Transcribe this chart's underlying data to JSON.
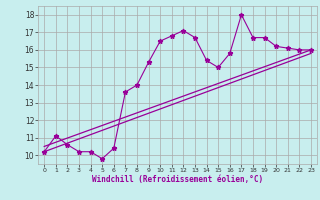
{
  "title": "",
  "xlabel": "Windchill (Refroidissement éolien,°C)",
  "bg_color": "#c8eeee",
  "grid_color": "#aaaaaa",
  "line_color": "#990099",
  "xlim": [
    -0.5,
    23.5
  ],
  "ylim": [
    9.5,
    18.5
  ],
  "xticks": [
    0,
    1,
    2,
    3,
    4,
    5,
    6,
    7,
    8,
    9,
    10,
    11,
    12,
    13,
    14,
    15,
    16,
    17,
    18,
    19,
    20,
    21,
    22,
    23
  ],
  "yticks": [
    10,
    11,
    12,
    13,
    14,
    15,
    16,
    17,
    18
  ],
  "main_x": [
    0,
    1,
    2,
    3,
    4,
    5,
    6,
    7,
    8,
    9,
    10,
    11,
    12,
    13,
    14,
    15,
    16,
    17,
    18,
    19,
    20,
    21,
    22,
    23
  ],
  "main_y": [
    10.2,
    11.1,
    10.6,
    10.2,
    10.2,
    9.8,
    10.4,
    13.6,
    14.0,
    15.3,
    16.5,
    16.8,
    17.1,
    16.7,
    15.4,
    15.0,
    15.8,
    18.0,
    16.7,
    16.7,
    16.2,
    16.1,
    16.0,
    16.0
  ],
  "line2_x": [
    0,
    23
  ],
  "line2_y": [
    10.2,
    15.8
  ],
  "line3_x": [
    0,
    23
  ],
  "line3_y": [
    10.5,
    16.0
  ]
}
